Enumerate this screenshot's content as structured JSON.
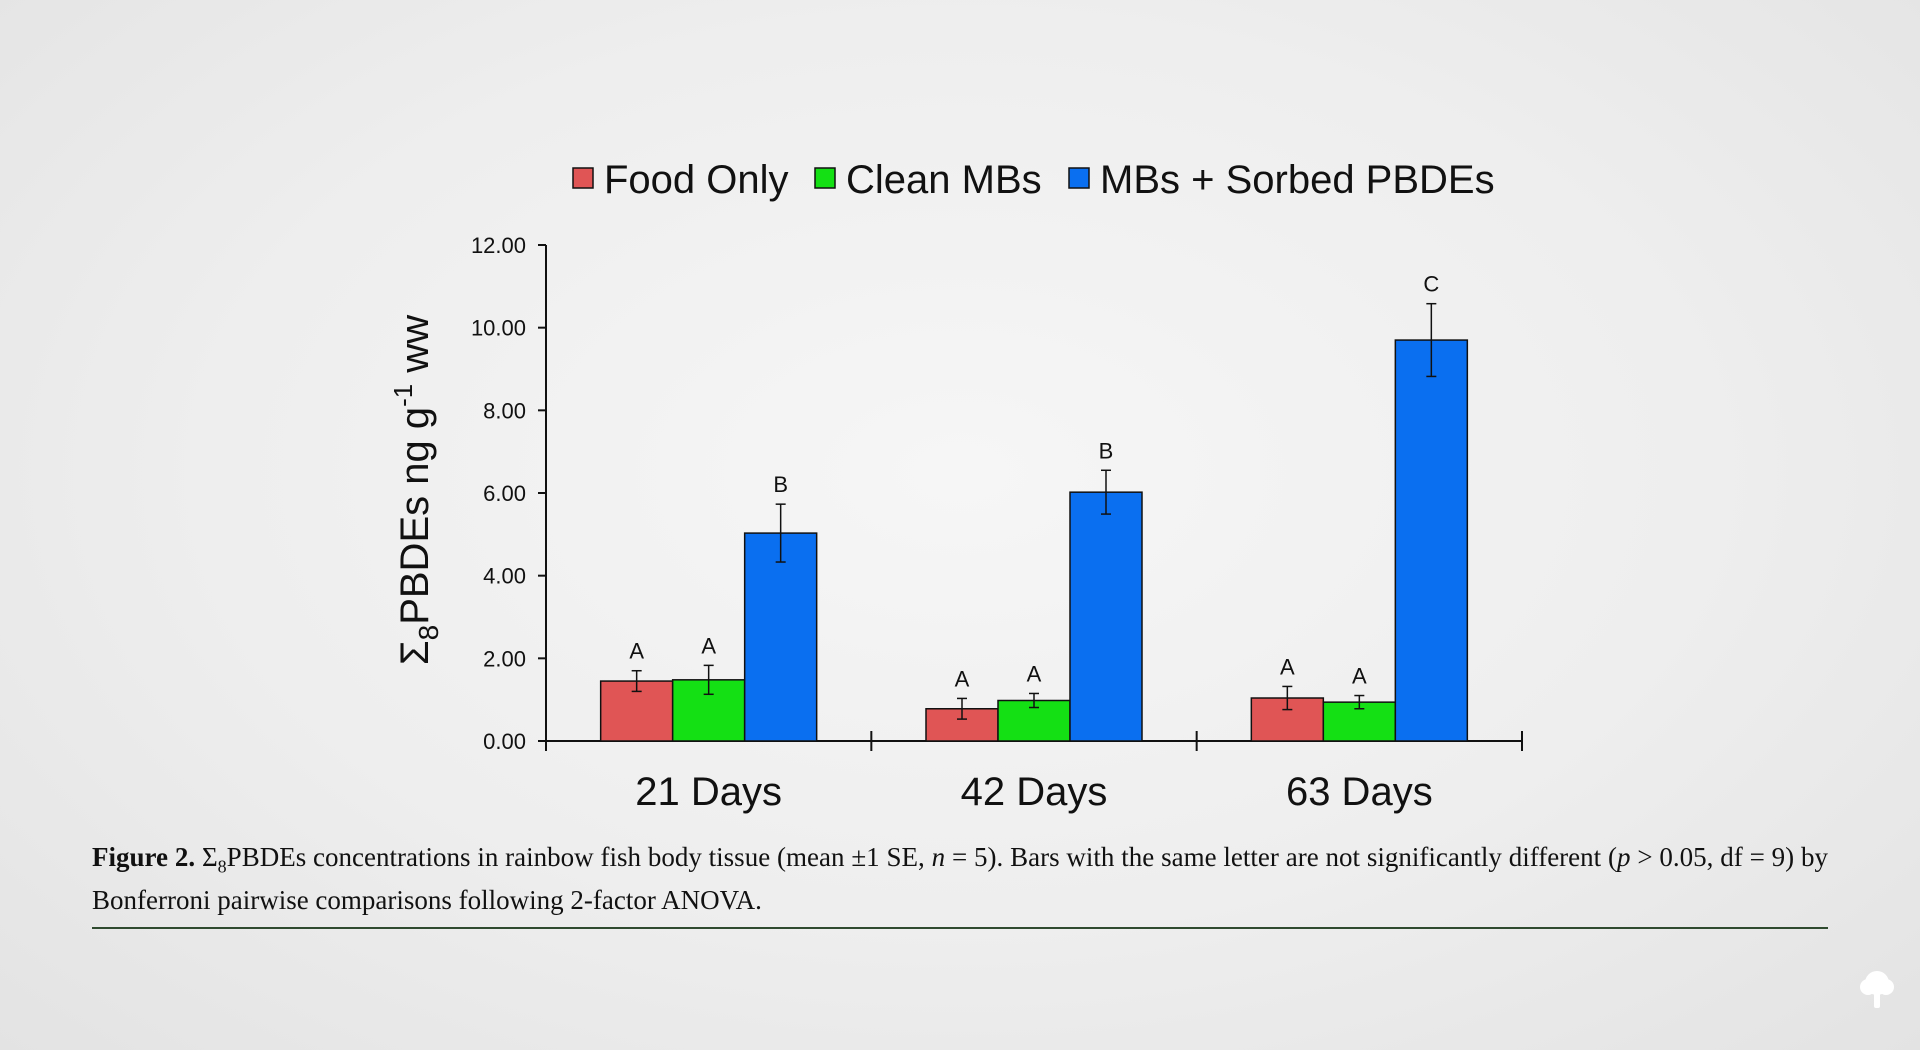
{
  "chart_data": {
    "type": "bar",
    "categories": [
      "21 Days",
      "42 Days",
      "63 Days"
    ],
    "series": [
      {
        "name": "Food Only",
        "color": "#e05555",
        "values": [
          1.45,
          0.78,
          1.04
        ],
        "errors": [
          0.25,
          0.25,
          0.28
        ],
        "letters": [
          "A",
          "A",
          "A"
        ]
      },
      {
        "name": "Clean MBs",
        "color": "#14e014",
        "values": [
          1.48,
          0.98,
          0.94
        ],
        "errors": [
          0.35,
          0.17,
          0.16
        ],
        "letters": [
          "A",
          "A",
          "A"
        ]
      },
      {
        "name": "MBs + Sorbed PBDEs",
        "color": "#0a6ff0",
        "values": [
          5.03,
          6.02,
          9.7
        ],
        "errors": [
          0.7,
          0.53,
          0.88
        ],
        "letters": [
          "B",
          "B",
          "C"
        ]
      }
    ],
    "ylabel": {
      "sigma": "Σ",
      "sigma_sub": "8",
      "main": "PBDEs ng g",
      "sup": "-1",
      "unit": " ww"
    },
    "xlabel": "",
    "ylim": [
      0,
      12
    ],
    "yticks": [
      "0.00",
      "2.00",
      "4.00",
      "6.00",
      "8.00",
      "10.00",
      "12.00"
    ],
    "ytick_values": [
      0,
      2,
      4,
      6,
      8,
      10,
      12
    ],
    "legend_position": "top",
    "grid": false
  },
  "caption": {
    "label": "Figure 2.",
    "sigma": "Σ",
    "sigma_sub": "8",
    "part1": "PBDEs concentrations in rainbow fish body tissue (mean ±1 SE, ",
    "n": "n",
    "part2": " = 5). Bars with the same letter are not significantly different (",
    "p": "p",
    "part3": " > 0.05, df = 9) by Bonferroni pairwise comparisons following 2-factor ANOVA."
  },
  "icons": {
    "corner": "tree-icon"
  }
}
